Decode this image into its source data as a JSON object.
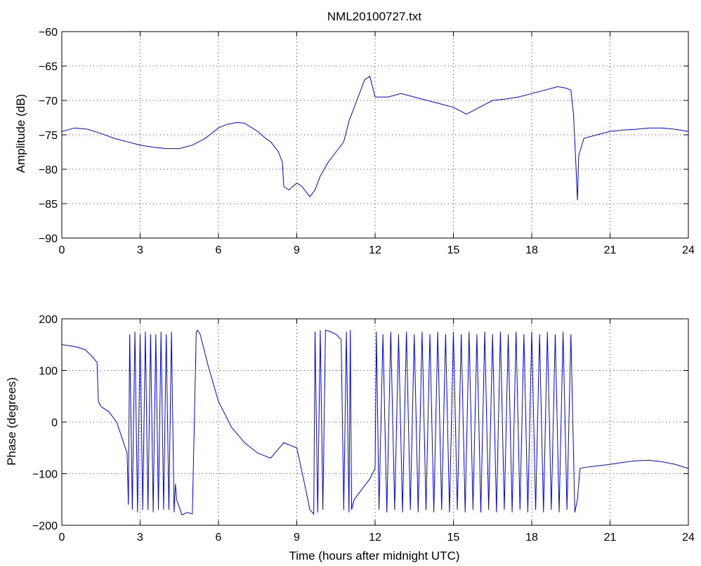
{
  "title": "NML20100727.txt",
  "chart_data": [
    {
      "type": "line",
      "title": "NML20100727.txt",
      "xlabel": "",
      "ylabel": "Amplitude (dB)",
      "xlim": [
        0,
        24
      ],
      "ylim": [
        -90,
        -60
      ],
      "xticks": [
        0,
        3,
        6,
        9,
        12,
        15,
        18,
        21,
        24
      ],
      "yticks": [
        -90,
        -85,
        -80,
        -75,
        -70,
        -65,
        -60
      ],
      "grid": true,
      "line_color": "#0000ff",
      "series": [
        {
          "x": [
            0,
            0.5,
            1.0,
            1.5,
            2.0,
            2.5,
            3.0,
            3.5,
            4.0,
            4.5,
            5.0,
            5.5,
            6.0,
            6.3,
            6.7,
            7.0,
            7.5,
            7.8,
            8.0,
            8.3,
            8.45,
            8.5,
            8.7,
            9.0,
            9.2,
            9.5,
            9.7,
            9.9,
            10.2,
            10.5,
            10.8,
            11.0,
            11.3,
            11.6,
            11.8,
            12.0,
            12.5,
            13.0,
            13.5,
            14.0,
            14.5,
            15.0,
            15.5,
            16.0,
            16.5,
            17.0,
            17.5,
            18.0,
            18.5,
            19.0,
            19.3,
            19.5,
            19.6,
            19.7,
            19.75,
            19.8,
            20.0,
            20.5,
            21.0,
            21.5,
            22.0,
            22.5,
            23.0,
            23.5,
            24.0
          ],
          "y": [
            -74.5,
            -74,
            -74.2,
            -74.8,
            -75.5,
            -76,
            -76.5,
            -76.8,
            -77,
            -77,
            -76.5,
            -75.5,
            -74,
            -73.5,
            -73.2,
            -73.3,
            -74.5,
            -75.5,
            -76,
            -77.5,
            -79,
            -82.5,
            -83,
            -82,
            -82.5,
            -84,
            -83,
            -81,
            -79,
            -77.5,
            -76,
            -73,
            -70,
            -67,
            -66.5,
            -69.5,
            -69.5,
            -69,
            -69.5,
            -70,
            -70.5,
            -71,
            -72,
            -71,
            -70,
            -69.8,
            -69.5,
            -69,
            -68.5,
            -68,
            -68.2,
            -68.5,
            -72,
            -80,
            -84.5,
            -78,
            -75.5,
            -75,
            -74.5,
            -74.3,
            -74.2,
            -74,
            -74,
            -74.2,
            -74.5
          ]
        }
      ]
    },
    {
      "type": "line",
      "title": "",
      "xlabel": "Time (hours after midnight UTC)",
      "ylabel": "Phase (degrees)",
      "xlim": [
        0,
        24
      ],
      "ylim": [
        -200,
        200
      ],
      "xticks": [
        0,
        3,
        6,
        9,
        12,
        15,
        18,
        21,
        24
      ],
      "yticks": [
        -200,
        -100,
        0,
        100,
        200
      ],
      "grid": true,
      "line_color": "#0000ff",
      "series": [
        {
          "x": [
            0,
            0.3,
            0.6,
            0.9,
            1.2,
            1.35,
            1.4,
            1.5,
            1.8,
            2.1,
            2.3,
            2.5,
            2.55,
            2.6,
            2.7,
            2.8,
            2.9,
            3.0,
            3.1,
            3.2,
            3.3,
            3.4,
            3.5,
            3.6,
            3.7,
            3.8,
            3.9,
            4.0,
            4.1,
            4.2,
            4.3,
            4.35,
            4.4,
            4.6,
            4.8,
            5.0,
            5.15,
            5.2,
            5.3,
            5.6,
            6.0,
            6.5,
            7.0,
            7.5,
            8.0,
            8.5,
            9.0,
            9.3,
            9.5,
            9.65,
            9.7,
            9.8,
            9.9,
            10.0,
            10.1,
            10.3,
            10.5,
            10.7,
            10.8,
            10.9,
            11.0,
            11.05,
            11.1,
            11.15,
            11.2,
            11.5,
            11.8,
            12.0,
            12.05,
            12.15,
            12.3,
            12.45,
            12.6,
            12.75,
            12.9,
            13.05,
            13.2,
            13.35,
            13.5,
            13.65,
            13.8,
            13.95,
            14.1,
            14.25,
            14.4,
            14.55,
            14.7,
            14.85,
            15.0,
            15.15,
            15.3,
            15.45,
            15.6,
            15.75,
            15.9,
            16.05,
            16.2,
            16.35,
            16.5,
            16.65,
            16.8,
            16.95,
            17.1,
            17.25,
            17.4,
            17.55,
            17.7,
            17.85,
            18.0,
            18.15,
            18.3,
            18.45,
            18.6,
            18.75,
            18.9,
            19.05,
            19.2,
            19.35,
            19.5,
            19.65,
            19.75,
            19.85,
            20.0,
            20.5,
            21.0,
            21.5,
            22.0,
            22.5,
            23.0,
            23.5,
            24.0
          ],
          "y": [
            150,
            148,
            145,
            140,
            125,
            115,
            40,
            30,
            20,
            0,
            -30,
            -60,
            -160,
            170,
            -170,
            175,
            -175,
            170,
            -170,
            175,
            -170,
            170,
            -175,
            170,
            -170,
            175,
            -170,
            170,
            -170,
            175,
            -175,
            -120,
            -150,
            -180,
            -175,
            -178,
            175,
            178,
            170,
            110,
            40,
            -10,
            -40,
            -60,
            -70,
            -40,
            -50,
            -120,
            -170,
            -178,
            175,
            -175,
            178,
            -170,
            178,
            175,
            170,
            160,
            -170,
            175,
            -175,
            178,
            -170,
            -160,
            -150,
            -130,
            -110,
            -90,
            175,
            -170,
            170,
            -175,
            175,
            -170,
            170,
            -175,
            175,
            -170,
            170,
            -175,
            175,
            -170,
            170,
            -175,
            175,
            -170,
            170,
            -175,
            175,
            -170,
            170,
            -175,
            175,
            -170,
            170,
            -175,
            175,
            -170,
            170,
            -175,
            175,
            -170,
            170,
            -175,
            175,
            -170,
            170,
            -175,
            175,
            -170,
            170,
            -175,
            175,
            -170,
            170,
            -175,
            175,
            -170,
            170,
            -175,
            -150,
            -90,
            -88,
            -85,
            -82,
            -78,
            -75,
            -74,
            -77,
            -82,
            -90
          ]
        }
      ]
    }
  ]
}
